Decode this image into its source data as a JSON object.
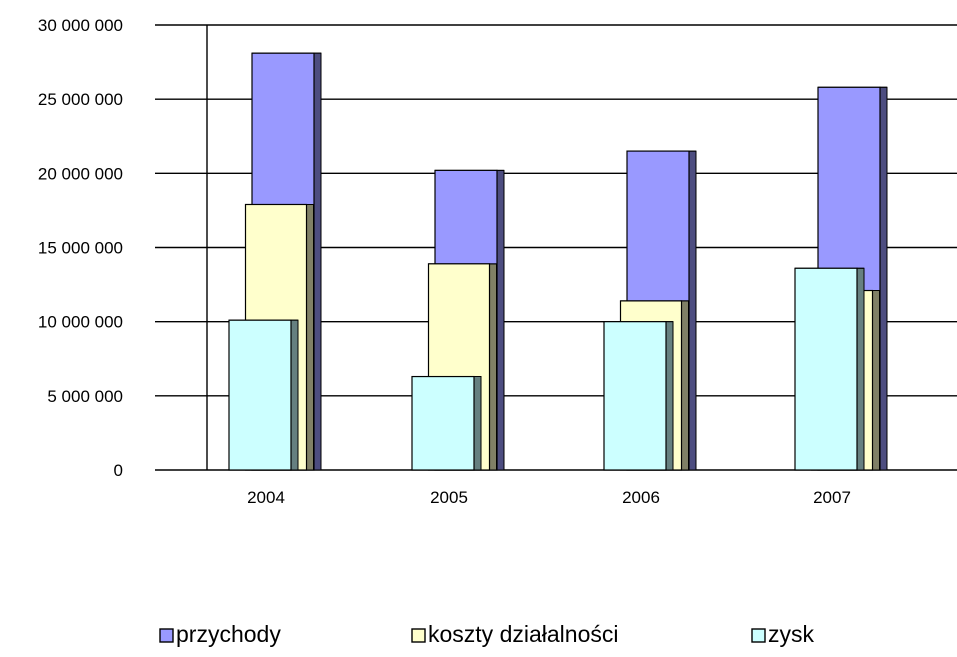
{
  "chart_data": {
    "type": "bar",
    "style": "3d-clustered-overlapping",
    "categories": [
      "2004",
      "2005",
      "2006",
      "2007"
    ],
    "series": [
      {
        "name": "przychody",
        "color": "#9999ff",
        "values": [
          28100000,
          20200000,
          21500000,
          25800000
        ]
      },
      {
        "name": "koszty działalności",
        "color": "#ffffcc",
        "values": [
          17900000,
          13900000,
          11400000,
          12100000
        ]
      },
      {
        "name": "zysk",
        "color": "#ccffff",
        "values": [
          10100000,
          6300000,
          10000000,
          13600000
        ]
      }
    ],
    "ylim": [
      0,
      30000000
    ],
    "y_ticks": [
      0,
      5000000,
      10000000,
      15000000,
      20000000,
      25000000,
      30000000
    ],
    "y_tick_labels": [
      "0",
      "5 000 000",
      "10 000 000",
      "15 000 000",
      "20 000 000",
      "25 000 000",
      "30 000 000"
    ],
    "grid": true,
    "legend_position": "bottom",
    "title": "",
    "xlabel": "",
    "ylabel": ""
  }
}
